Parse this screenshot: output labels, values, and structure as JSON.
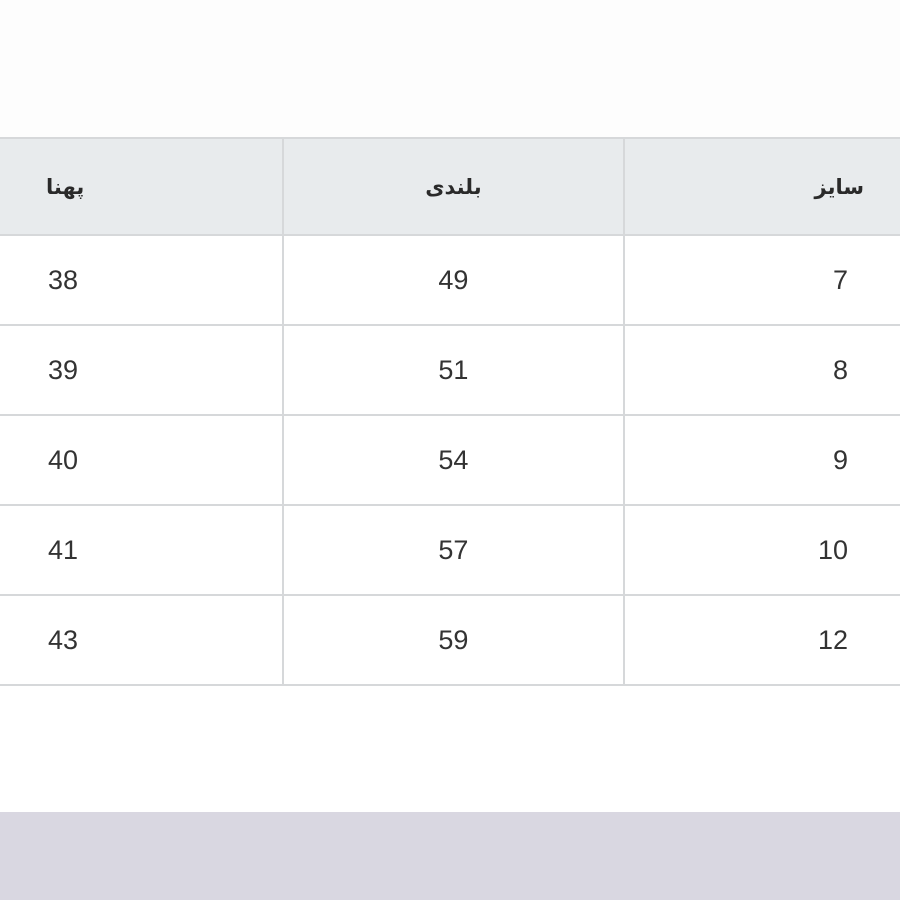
{
  "size_table": {
    "headers": [
      "سایز",
      "بلندی",
      "پهنا"
    ],
    "rows": [
      [
        "7",
        "49",
        "38"
      ],
      [
        "8",
        "51",
        "39"
      ],
      [
        "9",
        "54",
        "40"
      ],
      [
        "10",
        "57",
        "41"
      ],
      [
        "12",
        "59",
        "43"
      ]
    ]
  },
  "colors": {
    "header_background": "#e8ebed",
    "border": "#d6d8da",
    "bottom_band": "#d9d7e1"
  }
}
